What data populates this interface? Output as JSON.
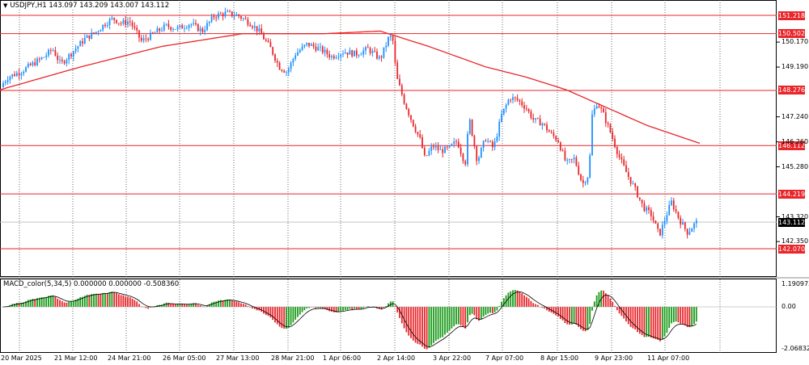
{
  "main_title": {
    "arrow_icon": "triangle-down-icon",
    "text": "USDJPY,H1  143.097 143.209 143.007 143.112"
  },
  "macd_title": "MACD_color(5,34,5) 0.000000 0.000000 -0.508360",
  "hlines": [
    {
      "label": "151.218",
      "price": 151.218
    },
    {
      "label": "150.502",
      "price": 150.502
    },
    {
      "label": "148.276",
      "price": 148.276
    },
    {
      "label": "146.112",
      "price": 146.112
    },
    {
      "label": "144.219",
      "price": 144.219
    },
    {
      "label": "142.070",
      "price": 142.07
    }
  ],
  "current_price": {
    "label": "143.112",
    "price": 143.112
  },
  "price_axis": [
    "150.170",
    "149.190",
    "147.240",
    "146.260",
    "145.280",
    "143.320",
    "142.350"
  ],
  "macd_axis": [
    "1.190973",
    "0.00",
    "-2.068327"
  ],
  "time_axis": [
    "20 Mar 2025",
    "21 Mar 12:00",
    "24 Mar 21:00",
    "26 Mar 05:00",
    "27 Mar 13:00",
    "28 Mar 21:00",
    "1 Apr 06:00",
    "2 Apr 14:00",
    "3 Apr 22:00",
    "7 Apr 07:00",
    "8 Apr 15:00",
    "9 Apr 23:00",
    "11 Apr 07:00"
  ],
  "colors": {
    "bull": "#1e90ff",
    "bear": "#e8262b",
    "ma": "#e8262b",
    "macd_up": "#1a9b1a",
    "macd_down": "#e8262b",
    "hline": "#e8262b"
  },
  "chart_data": {
    "type": "candlestick",
    "symbol": "USDJPY",
    "timeframe": "H1",
    "ylim": [
      142.0,
      151.5
    ],
    "price_path": [
      [
        0,
        148.4
      ],
      [
        10,
        148.8
      ],
      [
        25,
        149.0
      ],
      [
        40,
        149.3
      ],
      [
        55,
        149.6
      ],
      [
        65,
        149.9
      ],
      [
        75,
        149.3
      ],
      [
        90,
        149.8
      ],
      [
        105,
        150.3
      ],
      [
        120,
        150.6
      ],
      [
        130,
        150.9
      ],
      [
        140,
        151.1
      ],
      [
        150,
        150.9
      ],
      [
        160,
        151.0
      ],
      [
        175,
        150.2
      ],
      [
        190,
        150.5
      ],
      [
        205,
        150.8
      ],
      [
        220,
        150.7
      ],
      [
        235,
        150.9
      ],
      [
        250,
        150.6
      ],
      [
        265,
        151.2
      ],
      [
        280,
        151.3
      ],
      [
        295,
        151.2
      ],
      [
        310,
        150.9
      ],
      [
        320,
        150.6
      ],
      [
        335,
        149.9
      ],
      [
        345,
        149.2
      ],
      [
        355,
        149.0
      ],
      [
        365,
        149.7
      ],
      [
        380,
        150.1
      ],
      [
        395,
        149.9
      ],
      [
        410,
        149.6
      ],
      [
        425,
        149.8
      ],
      [
        440,
        149.7
      ],
      [
        455,
        149.9
      ],
      [
        470,
        149.5
      ],
      [
        480,
        150.3
      ],
      [
        485,
        150.4
      ],
      [
        490,
        148.8
      ],
      [
        500,
        147.8
      ],
      [
        510,
        147.0
      ],
      [
        520,
        146.3
      ],
      [
        525,
        145.6
      ],
      [
        535,
        146.1
      ],
      [
        545,
        145.9
      ],
      [
        555,
        146.0
      ],
      [
        565,
        146.3
      ],
      [
        575,
        145.4
      ],
      [
        580,
        147.2
      ],
      [
        590,
        145.5
      ],
      [
        600,
        146.4
      ],
      [
        610,
        146.0
      ],
      [
        620,
        147.3
      ],
      [
        630,
        148.0
      ],
      [
        640,
        147.9
      ],
      [
        650,
        147.6
      ],
      [
        660,
        147.1
      ],
      [
        670,
        147.0
      ],
      [
        680,
        146.6
      ],
      [
        690,
        146.3
      ],
      [
        700,
        145.4
      ],
      [
        710,
        145.6
      ],
      [
        720,
        144.6
      ],
      [
        728,
        145.0
      ],
      [
        732,
        147.3
      ],
      [
        738,
        147.8
      ],
      [
        745,
        147.4
      ],
      [
        755,
        146.6
      ],
      [
        765,
        145.7
      ],
      [
        775,
        145.0
      ],
      [
        785,
        144.4
      ],
      [
        795,
        143.7
      ],
      [
        805,
        143.4
      ],
      [
        815,
        142.6
      ],
      [
        825,
        143.5
      ],
      [
        830,
        143.9
      ],
      [
        840,
        143.2
      ],
      [
        850,
        142.7
      ],
      [
        860,
        143.1
      ]
    ],
    "ma_path": [
      [
        0,
        148.3
      ],
      [
        100,
        149.2
      ],
      [
        200,
        150.0
      ],
      [
        300,
        150.5
      ],
      [
        400,
        150.5
      ],
      [
        470,
        150.6
      ],
      [
        530,
        150.0
      ],
      [
        600,
        149.2
      ],
      [
        650,
        148.8
      ],
      [
        700,
        148.3
      ],
      [
        750,
        147.6
      ],
      [
        800,
        146.9
      ],
      [
        865,
        146.2
      ]
    ],
    "macd_ylim": [
      -2.068327,
      1.190973
    ]
  }
}
